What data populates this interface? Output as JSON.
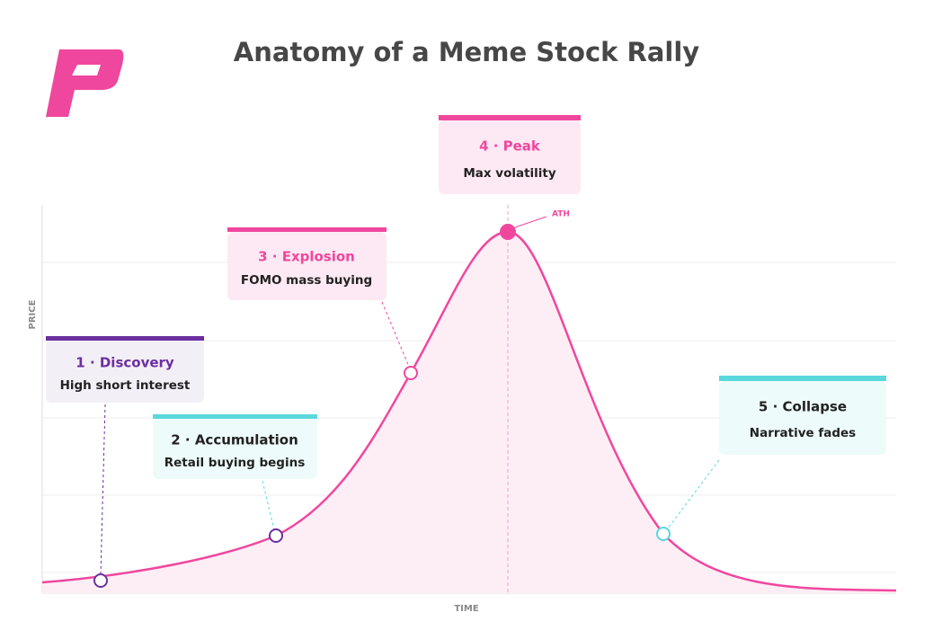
{
  "title": "Anatomy of a Meme Stock Rally",
  "axes": {
    "x": "TIME",
    "y": "PRICE"
  },
  "peak_label": "ATH",
  "stages": [
    {
      "title": "1 · Discovery",
      "subtitle": "High short interest"
    },
    {
      "title": "2 · Accumulation",
      "subtitle": "Retail buying begins"
    },
    {
      "title": "3 · Explosion",
      "subtitle": "FOMO mass buying"
    },
    {
      "title": "4 · Peak",
      "subtitle": "Max volatility"
    },
    {
      "title": "5 · Collapse",
      "subtitle": "Narrative fades"
    }
  ]
}
